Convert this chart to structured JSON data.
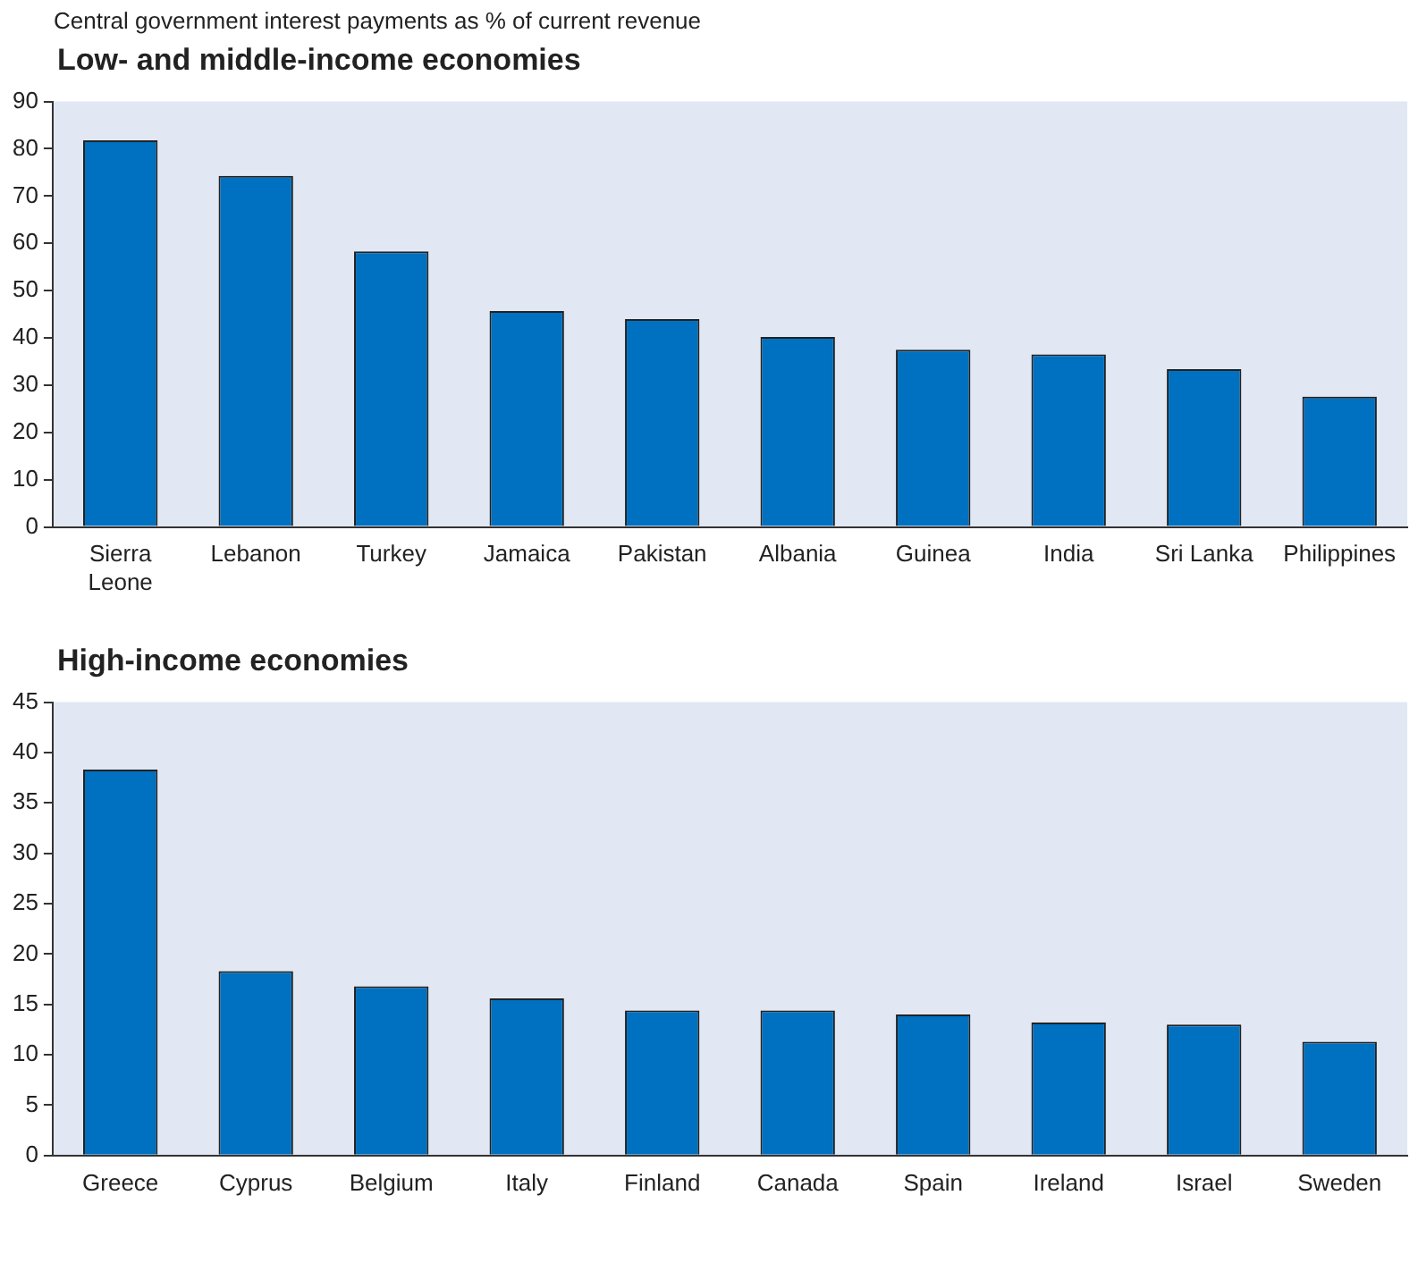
{
  "chart_data": [
    {
      "type": "bar",
      "title": "Low- and middle-income economies",
      "annotations": [
        "Central government interest payments as % of current revenue"
      ],
      "categories": [
        "Sierra Leone",
        "Lebanon",
        "Turkey",
        "Jamaica",
        "Pakistan",
        "Albania",
        "Guinea",
        "India",
        "Sri Lanka",
        "Philippines"
      ],
      "values": [
        81.8,
        74.3,
        58.3,
        45.7,
        44,
        40.2,
        37.5,
        36.5,
        33.4,
        27.6
      ],
      "color": "#0070c0",
      "ylim": [
        0,
        90
      ],
      "yticks": [
        0,
        10,
        20,
        30,
        40,
        50,
        60,
        70,
        80,
        90
      ],
      "grid": false,
      "legend": false
    },
    {
      "type": "bar",
      "title": "High-income economies",
      "categories": [
        "Greece",
        "Cyprus",
        "Belgium",
        "Italy",
        "Finland",
        "Canada",
        "Spain",
        "Ireland",
        "Israel",
        "Sweden"
      ],
      "values": [
        38.3,
        18.3,
        16.8,
        15.6,
        14.4,
        14.4,
        14,
        13.2,
        13,
        11.3
      ],
      "color": "#0070c0",
      "ylim": [
        0,
        45
      ],
      "yticks": [
        0,
        5,
        10,
        15,
        20,
        25,
        30,
        35,
        40,
        45
      ],
      "grid": false,
      "legend": false
    }
  ]
}
